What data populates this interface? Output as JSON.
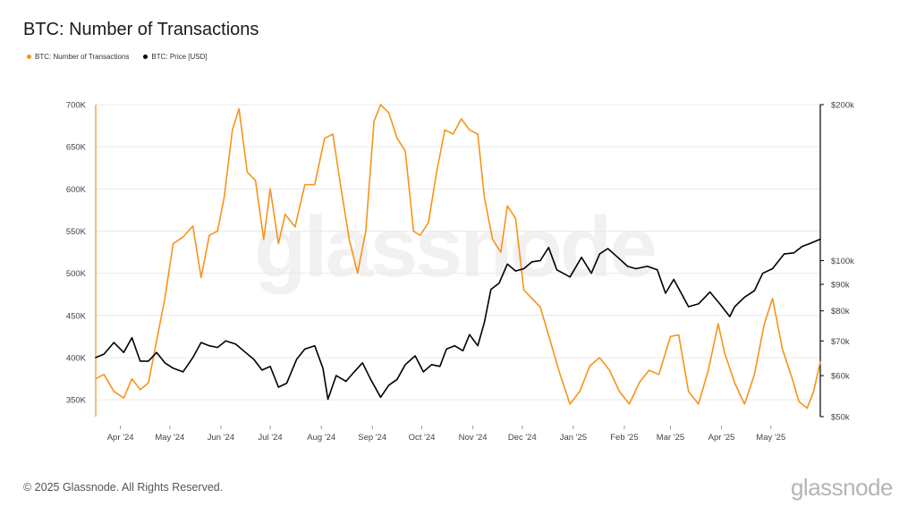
{
  "title": "BTC: Number of Transactions",
  "footer": {
    "copyright": "© 2025 Glassnode. All Rights Reserved.",
    "brand": "glassnode"
  },
  "watermark": "glassnode",
  "colors": {
    "transactions": "#f7931a",
    "price": "#000000",
    "grid": "#e9e9e9"
  },
  "chart_data": {
    "type": "line",
    "title": "BTC: Number of Transactions",
    "grid": true,
    "legend_position": "top-left",
    "x_tick_labels": [
      "Apr '24",
      "May '24",
      "Jun '24",
      "Jul '24",
      "Aug '24",
      "Sep '24",
      "Oct '24",
      "Nov '24",
      "Dec '24",
      "Jan '25",
      "Feb '25",
      "Mar '25",
      "Apr '25",
      "May '25"
    ],
    "x_range": [
      "2024-03-17",
      "2025-05-31"
    ],
    "y_left": {
      "ticks": [
        "350K",
        "400K",
        "450K",
        "500K",
        "550K",
        "600K",
        "650K",
        "700K"
      ],
      "ylim": [
        330000,
        700000
      ]
    },
    "y_right": {
      "scale": "log",
      "ticks": [
        "$50k",
        "$60k",
        "$70k",
        "$80k",
        "$90k",
        "$100k",
        "$200k"
      ],
      "ylim": [
        50000,
        200000
      ]
    },
    "series": [
      {
        "name": "BTC: Number of Transactions",
        "axis": "left",
        "color": "#f7931a",
        "points": [
          [
            "2024-03-17",
            375000
          ],
          [
            "2024-03-22",
            380000
          ],
          [
            "2024-03-28",
            360000
          ],
          [
            "2024-04-03",
            352000
          ],
          [
            "2024-04-08",
            375000
          ],
          [
            "2024-04-13",
            362000
          ],
          [
            "2024-04-18",
            370000
          ],
          [
            "2024-04-23",
            420000
          ],
          [
            "2024-04-28",
            470000
          ],
          [
            "2024-05-03",
            535000
          ],
          [
            "2024-05-09",
            543000
          ],
          [
            "2024-05-15",
            556000
          ],
          [
            "2024-05-20",
            495000
          ],
          [
            "2024-05-25",
            545000
          ],
          [
            "2024-05-30",
            550000
          ],
          [
            "2024-06-03",
            590000
          ],
          [
            "2024-06-08",
            670000
          ],
          [
            "2024-06-12",
            695000
          ],
          [
            "2024-06-17",
            620000
          ],
          [
            "2024-06-22",
            610000
          ],
          [
            "2024-06-27",
            540000
          ],
          [
            "2024-07-01",
            600000
          ],
          [
            "2024-07-06",
            535000
          ],
          [
            "2024-07-10",
            570000
          ],
          [
            "2024-07-16",
            555000
          ],
          [
            "2024-07-22",
            605000
          ],
          [
            "2024-07-28",
            605000
          ],
          [
            "2024-08-03",
            660000
          ],
          [
            "2024-08-08",
            665000
          ],
          [
            "2024-08-13",
            600000
          ],
          [
            "2024-08-18",
            540000
          ],
          [
            "2024-08-23",
            500000
          ],
          [
            "2024-08-28",
            550000
          ],
          [
            "2024-09-02",
            680000
          ],
          [
            "2024-09-06",
            700000
          ],
          [
            "2024-09-11",
            690000
          ],
          [
            "2024-09-16",
            660000
          ],
          [
            "2024-09-21",
            645000
          ],
          [
            "2024-09-26",
            550000
          ],
          [
            "2024-09-30",
            545000
          ],
          [
            "2024-10-05",
            560000
          ],
          [
            "2024-10-10",
            620000
          ],
          [
            "2024-10-15",
            670000
          ],
          [
            "2024-10-20",
            665000
          ],
          [
            "2024-10-25",
            683000
          ],
          [
            "2024-10-30",
            670000
          ],
          [
            "2024-11-04",
            665000
          ],
          [
            "2024-11-08",
            590000
          ],
          [
            "2024-11-13",
            540000
          ],
          [
            "2024-11-18",
            525000
          ],
          [
            "2024-11-22",
            580000
          ],
          [
            "2024-11-27",
            565000
          ],
          [
            "2024-12-02",
            480000
          ],
          [
            "2024-12-07",
            470000
          ],
          [
            "2024-12-12",
            460000
          ],
          [
            "2024-12-18",
            420000
          ],
          [
            "2024-12-24",
            380000
          ],
          [
            "2024-12-30",
            345000
          ],
          [
            "2025-01-05",
            360000
          ],
          [
            "2025-01-11",
            390000
          ],
          [
            "2025-01-17",
            400000
          ],
          [
            "2025-01-23",
            385000
          ],
          [
            "2025-01-29",
            360000
          ],
          [
            "2025-02-04",
            345000
          ],
          [
            "2025-02-10",
            370000
          ],
          [
            "2025-02-16",
            385000
          ],
          [
            "2025-02-22",
            380000
          ],
          [
            "2025-03-01",
            425000
          ],
          [
            "2025-03-06",
            427000
          ],
          [
            "2025-03-12",
            360000
          ],
          [
            "2025-03-18",
            345000
          ],
          [
            "2025-03-24",
            385000
          ],
          [
            "2025-03-30",
            440000
          ],
          [
            "2025-04-03",
            405000
          ],
          [
            "2025-04-09",
            370000
          ],
          [
            "2025-04-15",
            345000
          ],
          [
            "2025-04-21",
            380000
          ],
          [
            "2025-04-27",
            440000
          ],
          [
            "2025-05-02",
            470000
          ],
          [
            "2025-05-08",
            410000
          ],
          [
            "2025-05-14",
            375000
          ],
          [
            "2025-05-18",
            348000
          ],
          [
            "2025-05-23",
            340000
          ],
          [
            "2025-05-27",
            360000
          ],
          [
            "2025-05-31",
            395000
          ]
        ]
      },
      {
        "name": "BTC: Price [USD]",
        "axis": "right",
        "color": "#000000",
        "points": [
          [
            "2024-03-17",
            65000
          ],
          [
            "2024-03-22",
            66000
          ],
          [
            "2024-03-28",
            69500
          ],
          [
            "2024-04-03",
            66500
          ],
          [
            "2024-04-08",
            71000
          ],
          [
            "2024-04-13",
            64000
          ],
          [
            "2024-04-18",
            64000
          ],
          [
            "2024-04-23",
            66500
          ],
          [
            "2024-04-28",
            63500
          ],
          [
            "2024-05-03",
            62000
          ],
          [
            "2024-05-09",
            61000
          ],
          [
            "2024-05-15",
            65000
          ],
          [
            "2024-05-20",
            69500
          ],
          [
            "2024-05-25",
            68500
          ],
          [
            "2024-05-30",
            68000
          ],
          [
            "2024-06-04",
            70000
          ],
          [
            "2024-06-10",
            69000
          ],
          [
            "2024-06-16",
            66500
          ],
          [
            "2024-06-21",
            64500
          ],
          [
            "2024-06-26",
            61500
          ],
          [
            "2024-07-01",
            62500
          ],
          [
            "2024-07-06",
            57000
          ],
          [
            "2024-07-11",
            58000
          ],
          [
            "2024-07-17",
            64500
          ],
          [
            "2024-07-22",
            67500
          ],
          [
            "2024-07-28",
            68500
          ],
          [
            "2024-08-02",
            62000
          ],
          [
            "2024-08-05",
            54000
          ],
          [
            "2024-08-10",
            60000
          ],
          [
            "2024-08-16",
            58500
          ],
          [
            "2024-08-21",
            61000
          ],
          [
            "2024-08-26",
            63500
          ],
          [
            "2024-08-31",
            59000
          ],
          [
            "2024-09-06",
            54500
          ],
          [
            "2024-09-11",
            57500
          ],
          [
            "2024-09-16",
            59000
          ],
          [
            "2024-09-21",
            63000
          ],
          [
            "2024-09-27",
            65500
          ],
          [
            "2024-10-02",
            61000
          ],
          [
            "2024-10-07",
            63000
          ],
          [
            "2024-10-12",
            62500
          ],
          [
            "2024-10-16",
            67500
          ],
          [
            "2024-10-21",
            68500
          ],
          [
            "2024-10-26",
            67000
          ],
          [
            "2024-10-30",
            72000
          ],
          [
            "2024-11-04",
            68500
          ],
          [
            "2024-11-08",
            76000
          ],
          [
            "2024-11-12",
            88000
          ],
          [
            "2024-11-17",
            90500
          ],
          [
            "2024-11-22",
            98500
          ],
          [
            "2024-11-27",
            95500
          ],
          [
            "2024-12-02",
            96500
          ],
          [
            "2024-12-07",
            99500
          ],
          [
            "2024-12-12",
            100000
          ],
          [
            "2024-12-17",
            106000
          ],
          [
            "2024-12-22",
            96000
          ],
          [
            "2024-12-30",
            93000
          ],
          [
            "2025-01-06",
            101500
          ],
          [
            "2025-01-12",
            94500
          ],
          [
            "2025-01-17",
            103000
          ],
          [
            "2025-01-22",
            105500
          ],
          [
            "2025-01-28",
            101500
          ],
          [
            "2025-02-03",
            97500
          ],
          [
            "2025-02-08",
            96500
          ],
          [
            "2025-02-15",
            97500
          ],
          [
            "2025-02-21",
            96000
          ],
          [
            "2025-02-26",
            86500
          ],
          [
            "2025-03-03",
            92000
          ],
          [
            "2025-03-08",
            86000
          ],
          [
            "2025-03-12",
            81500
          ],
          [
            "2025-03-18",
            82500
          ],
          [
            "2025-03-25",
            87000
          ],
          [
            "2025-03-31",
            82500
          ],
          [
            "2025-04-06",
            78000
          ],
          [
            "2025-04-09",
            81500
          ],
          [
            "2025-04-15",
            85000
          ],
          [
            "2025-04-21",
            87500
          ],
          [
            "2025-04-26",
            94500
          ],
          [
            "2025-05-02",
            96500
          ],
          [
            "2025-05-09",
            103000
          ],
          [
            "2025-05-15",
            103500
          ],
          [
            "2025-05-20",
            106500
          ],
          [
            "2025-05-25",
            108000
          ],
          [
            "2025-05-31",
            110000
          ]
        ]
      }
    ]
  }
}
